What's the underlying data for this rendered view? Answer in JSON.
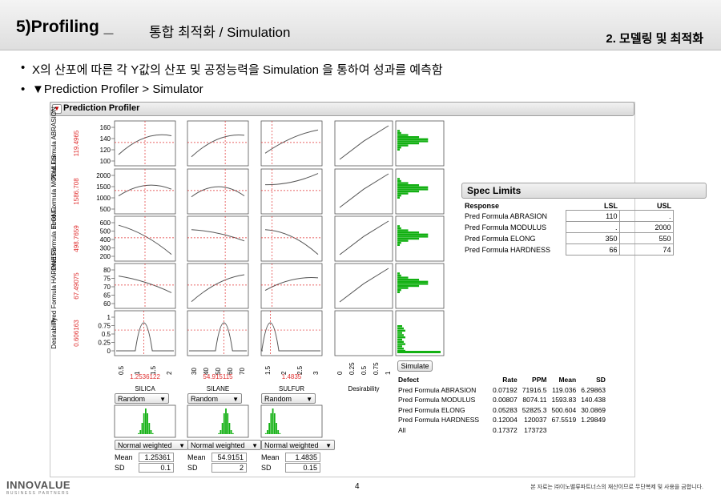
{
  "header": {
    "title_main": "5)Profiling _",
    "title_sub": "통합 최적화 / Simulation",
    "section": "2. 모델링 및 최적화"
  },
  "bullets": [
    "X의 산포에 따른 각 Y값의 산포 및 공정능력을 Simulation 을 통하여 성과를 예측함",
    "▼Prediction Profiler >  Simulator"
  ],
  "profiler": {
    "title": "Prediction Profiler",
    "responses": [
      {
        "name": "Pred Formula ABRASION",
        "value": "119.4965",
        "ticks": [
          "160",
          "140",
          "120",
          "100"
        ]
      },
      {
        "name": "Pred Formula MODULUS",
        "value": "1586.708",
        "ticks": [
          "2000",
          "1500",
          "1000",
          "500"
        ]
      },
      {
        "name": "Pred Formula ELONG",
        "value": "498.7659",
        "ticks": [
          "600",
          "500",
          "400",
          "300",
          "200"
        ]
      },
      {
        "name": "Pred Formula HARDNESS",
        "value": "67.49075",
        "ticks": [
          "80",
          "75",
          "70",
          "65",
          "60"
        ]
      },
      {
        "name": "Desirability",
        "value": "0.606163",
        "ticks": [
          "1",
          "0.75",
          "0.5",
          "0.25",
          "0"
        ]
      }
    ],
    "factors": [
      {
        "name": "SILICA",
        "value": "1.2536122",
        "ticks": [
          "0.5",
          "1",
          "1.5",
          "2"
        ],
        "dist_label": "Random",
        "weight_label": "Normal weighted",
        "mean_label": "Mean",
        "mean": "1.25361",
        "sd_label": "SD",
        "sd": "0.1"
      },
      {
        "name": "SILANE",
        "value": "54.915115",
        "ticks": [
          "30",
          "40",
          "50",
          "60",
          "70"
        ],
        "dist_label": "Random",
        "weight_label": "Normal weighted",
        "mean_label": "Mean",
        "mean": "54.9151",
        "sd_label": "SD",
        "sd": "2"
      },
      {
        "name": "SULFUR",
        "value": "1.4835",
        "ticks": [
          "1.5",
          "2",
          "2.5",
          "3"
        ],
        "dist_label": "Random",
        "weight_label": "Normal weighted",
        "mean_label": "Mean",
        "mean": "1.4835",
        "sd_label": "SD",
        "sd": "0.15"
      }
    ],
    "desirability_label": "Desirability",
    "desirability_ticks": [
      "0",
      "0.25",
      "0.5",
      "0.75",
      "1"
    ],
    "simulate_label": "Simulate",
    "colors": {
      "curve": "#555555",
      "crosshair": "#e03030",
      "hist": "#12b012",
      "current": "#e03030"
    }
  },
  "spec_limits": {
    "title": "Spec Limits",
    "headers": [
      "Response",
      "LSL",
      "USL"
    ],
    "rows": [
      {
        "name": "Pred Formula ABRASION",
        "lsl": "110",
        "usl": "."
      },
      {
        "name": "Pred Formula MODULUS",
        "lsl": ".",
        "usl": "2000"
      },
      {
        "name": "Pred Formula ELONG",
        "lsl": "350",
        "usl": "550"
      },
      {
        "name": "Pred Formula HARDNESS",
        "lsl": "66",
        "usl": "74"
      }
    ]
  },
  "defect_table": {
    "headers": [
      "Defect",
      "Rate",
      "PPM",
      "Mean",
      "SD"
    ],
    "rows": [
      [
        "Pred Formula ABRASION",
        "0.07192",
        "71916.5",
        "119.036",
        "6.29863"
      ],
      [
        "Pred Formula MODULUS",
        "0.00807",
        "8074.11",
        "1593.83",
        "140.438"
      ],
      [
        "Pred Formula ELONG",
        "0.05283",
        "52825.3",
        "500.604",
        "30.0869"
      ],
      [
        "Pred Formula HARDNESS",
        "0.12004",
        "120037",
        "67.5519",
        "1.29849"
      ],
      [
        "All",
        "0.17372",
        "173723",
        "",
        ""
      ]
    ]
  },
  "footer": {
    "logo": "INNOVALUE",
    "logo_sub": "BUSINESS PARTNERS",
    "page": "4",
    "copyright": "본 자료는 ㈜이노밸류파트너스의 재산이므로 무단복제 및 사용을 금합니다."
  }
}
